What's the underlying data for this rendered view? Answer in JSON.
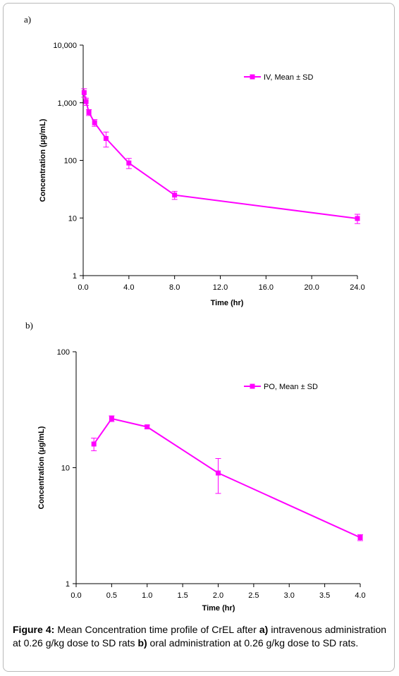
{
  "color": "#ff00ff",
  "chart_data": [
    {
      "panel_label": "a)",
      "type": "line",
      "yscale": "log",
      "xlabel": "Time (hr)",
      "ylabel": "Concentration (μg/mL)",
      "xlim": [
        0,
        24
      ],
      "ylim": [
        1,
        10000
      ],
      "x_ticks": [
        "0.0",
        "4.0",
        "8.0",
        "12.0",
        "16.0",
        "20.0",
        "24.0"
      ],
      "y_ticks": [
        "1",
        "10",
        "100",
        "1,000",
        "10,000"
      ],
      "grid": false,
      "legend_position": "top-right",
      "series": [
        {
          "name": "IV, Mean ± SD",
          "x": [
            0.083,
            0.25,
            0.5,
            1,
            2,
            4,
            8,
            24
          ],
          "y": [
            1500,
            1050,
            680,
            450,
            240,
            90,
            25,
            9.8
          ],
          "error": [
            250,
            150,
            80,
            60,
            70,
            18,
            4,
            1.8
          ]
        }
      ]
    },
    {
      "panel_label": "b)",
      "type": "line",
      "yscale": "log",
      "xlabel": "Time (hr)",
      "ylabel": "Concentration (μg/mL)",
      "xlim": [
        0,
        4
      ],
      "ylim": [
        1,
        100
      ],
      "x_ticks": [
        "0.0",
        "0.5",
        "1.0",
        "1.5",
        "2.0",
        "2.5",
        "3.0",
        "3.5",
        "4.0"
      ],
      "y_ticks": [
        "1",
        "10",
        "100"
      ],
      "grid": false,
      "legend_position": "top-right",
      "series": [
        {
          "name": "PO, Mean ± SD",
          "x": [
            0.25,
            0.5,
            1,
            2,
            4
          ],
          "y": [
            16,
            26.5,
            22.5,
            9,
            2.5
          ],
          "error": [
            2,
            1.5,
            0.8,
            3,
            0.15
          ]
        }
      ]
    }
  ],
  "caption": {
    "label": "Figure 4:",
    "t1": " Mean Concentration time profile of CrEL after ",
    "a": "a)",
    "t2": " intravenous administration at 0.26 g/kg dose to SD rats ",
    "b": "b)",
    "t3": " oral administration at 0.26 g/kg dose to SD rats."
  }
}
